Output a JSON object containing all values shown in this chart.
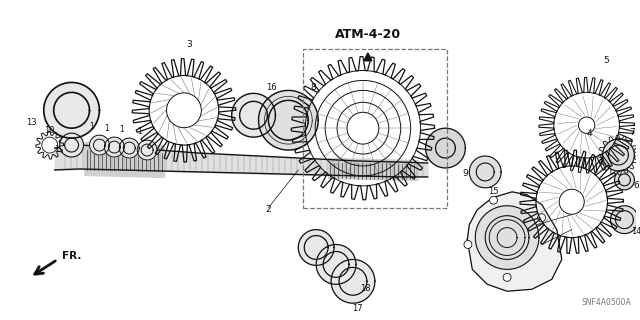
{
  "bg_color": "#ffffff",
  "fg_color": "#111111",
  "atm_label": "ATM-4-20",
  "fr_label": "FR.",
  "catalog_code": "SNF4A0500A",
  "fig_w": 6.4,
  "fig_h": 3.2,
  "dpi": 100
}
